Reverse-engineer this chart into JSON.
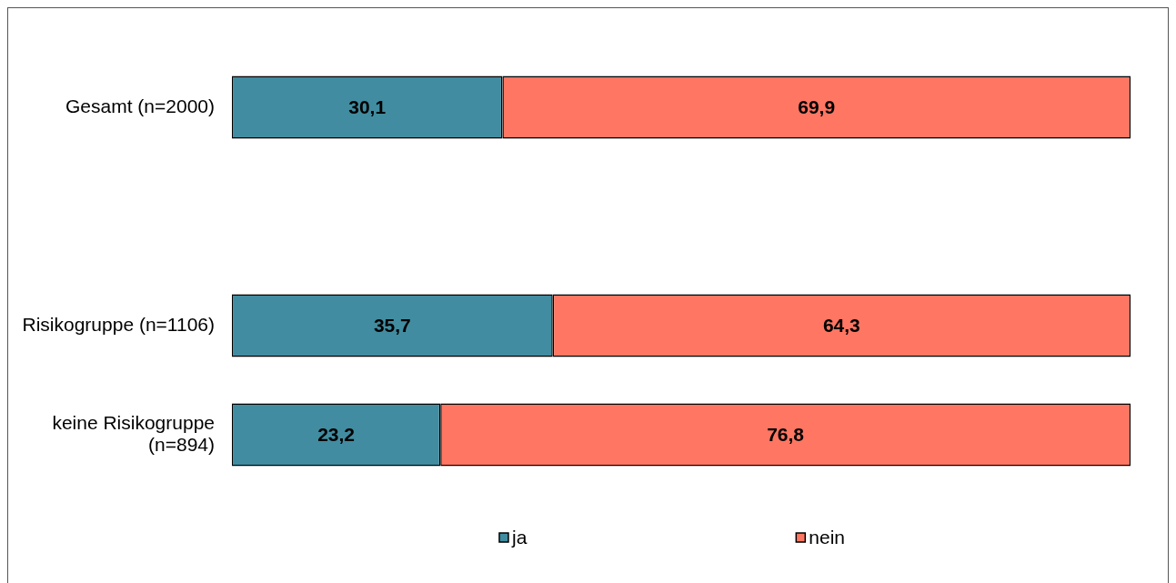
{
  "chart_data": {
    "type": "bar",
    "orientation": "horizontal",
    "stacked": true,
    "categories": [
      "Gesamt (n=2000)",
      null,
      "Risikogruppe (n=1106)",
      "keine Risikogruppe (n=894)"
    ],
    "series": [
      {
        "name": "ja",
        "color": "#418ca0",
        "values": [
          30.1,
          null,
          35.7,
          23.2
        ],
        "value_labels": [
          "30,1",
          null,
          "35,7",
          "23,2"
        ]
      },
      {
        "name": "nein",
        "color": "#ff7662",
        "values": [
          69.9,
          null,
          64.3,
          76.8
        ],
        "value_labels": [
          "69,9",
          null,
          "64,3",
          "76,8"
        ]
      }
    ],
    "xlim": [
      0,
      100
    ],
    "tick_labels": "y",
    "legend": "bottom"
  }
}
